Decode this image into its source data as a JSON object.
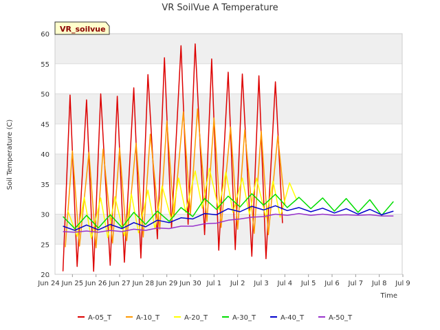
{
  "chart_data": {
    "type": "line",
    "title": "VR SoilVue A Temperature",
    "xlabel": "Time",
    "ylabel": "Soil Temperature (C)",
    "badge": "VR_soilvue",
    "ylim": [
      20,
      60
    ],
    "yticks": [
      20,
      25,
      30,
      35,
      40,
      45,
      50,
      55,
      60
    ],
    "xlim": [
      0,
      15
    ],
    "x_unit": "days from Jun 24",
    "xticks": [
      {
        "x": 0,
        "label": "Jun 24"
      },
      {
        "x": 1,
        "label": "Jun 25"
      },
      {
        "x": 2,
        "label": "Jun 26"
      },
      {
        "x": 3,
        "label": "Jun 27"
      },
      {
        "x": 4,
        "label": "Jun 28"
      },
      {
        "x": 5,
        "label": "Jun 29"
      },
      {
        "x": 6,
        "label": "Jun 30"
      },
      {
        "x": 7,
        "label": "Jul 1"
      },
      {
        "x": 8,
        "label": "Jul 2"
      },
      {
        "x": 9,
        "label": "Jul 3"
      },
      {
        "x": 10,
        "label": "Jul 4"
      },
      {
        "x": 11,
        "label": "Jul 5"
      },
      {
        "x": 12,
        "label": "Jul 6"
      },
      {
        "x": 13,
        "label": "Jul 7"
      },
      {
        "x": 14,
        "label": "Jul 8"
      },
      {
        "x": 15,
        "label": "Jul 9"
      }
    ],
    "grid": true,
    "background_bands": true,
    "legend_position": "bottom",
    "series": [
      {
        "name": "A-05_T",
        "color": "#dd0000",
        "x": [
          0.6,
          0.9,
          1.2,
          1.6,
          1.9,
          2.2,
          2.6,
          2.9,
          3.2,
          3.6,
          3.9,
          4.2,
          4.6,
          4.9,
          5.2,
          5.6,
          5.9,
          6.2,
          6.6,
          6.9,
          7.2,
          7.6,
          7.9,
          8.2,
          8.6,
          8.9,
          9.2,
          9.6,
          9.9,
          10.2,
          10.6,
          10.9,
          11.2,
          11.6,
          11.9,
          12.2,
          12.6,
          12.9,
          13.2,
          13.6,
          13.9,
          14.2,
          14.6,
          14.9
        ],
        "y": [
          20.5,
          49.8,
          21.3,
          49.0,
          20.5,
          50.0,
          21.5,
          49.6,
          22.0,
          51.0,
          22.7,
          53.2,
          25.9,
          56.0,
          27.7,
          58.0,
          28.3,
          58.3,
          26.6,
          55.8,
          24.0,
          53.6,
          24.1,
          53.3,
          23.0,
          53.0,
          22.6,
          52.0,
          28.5,
          null,
          null,
          null,
          null,
          null,
          null,
          null,
          null,
          null,
          null,
          null,
          null,
          null,
          null,
          null
        ]
      },
      {
        "name": "A-10_T",
        "color": "#ff9900",
        "x": [
          0.7,
          1.0,
          1.3,
          1.7,
          2.0,
          2.3,
          2.7,
          3.0,
          3.3,
          3.7,
          4.0,
          4.3,
          4.7,
          5.0,
          5.3,
          5.7,
          6.0,
          6.3,
          6.7,
          7.0,
          7.3,
          7.7,
          8.0,
          8.3,
          8.7,
          9.0,
          9.3,
          9.7,
          10.0,
          10.3,
          10.7,
          11.0,
          11.3,
          11.7,
          12.0,
          12.3,
          12.7,
          13.0,
          13.3,
          13.7,
          14.0,
          14.3,
          14.7,
          15.0
        ],
        "y": [
          24.5,
          40.5,
          24.7,
          40.3,
          24.4,
          40.8,
          25.2,
          41.0,
          25.6,
          41.8,
          26.2,
          43.3,
          27.5,
          45.5,
          29.6,
          47.0,
          30.0,
          47.5,
          28.8,
          46.0,
          27.8,
          44.5,
          27.5,
          44.0,
          26.8,
          43.8,
          26.6,
          43.0,
          31.6,
          null,
          null,
          null,
          null,
          null,
          null,
          null,
          null,
          null,
          null,
          null,
          null,
          null,
          null,
          null
        ]
      },
      {
        "name": "A-20_T",
        "color": "#ffff00",
        "x": [
          0.8,
          1.2,
          1.5,
          1.8,
          2.2,
          2.5,
          2.8,
          3.2,
          3.5,
          3.8,
          4.2,
          4.5,
          4.8,
          5.2,
          5.5,
          5.8,
          6.2,
          6.5,
          6.8,
          7.2,
          7.5,
          7.8,
          8.2,
          8.5,
          8.8,
          9.2,
          9.5,
          9.8,
          10.2,
          10.5,
          10.8,
          11.2,
          11.5,
          11.8,
          12.2,
          12.5,
          12.8,
          13.2,
          13.5,
          13.8,
          14.2,
          14.5,
          14.8,
          15.1
        ],
        "y": [
          30.6,
          26.3,
          32.8,
          26.0,
          32.7,
          26.1,
          32.9,
          26.4,
          33.3,
          26.9,
          34.0,
          27.5,
          34.7,
          29.0,
          36.0,
          30.3,
          37.2,
          31.0,
          37.6,
          30.8,
          37.0,
          30.3,
          36.0,
          30.0,
          36.0,
          29.4,
          35.5,
          29.5,
          35.2,
          32.4,
          null,
          null,
          null,
          null,
          null,
          null,
          null,
          null,
          null,
          null,
          null,
          null,
          null,
          null
        ]
      },
      {
        "name": "A-30_T",
        "color": "#00dd00",
        "x": [
          0.6,
          1.1,
          1.6,
          2.1,
          2.6,
          3.1,
          3.6,
          4.1,
          4.6,
          5.1,
          5.6,
          6.1,
          6.6,
          7.1,
          7.6,
          8.1,
          8.6,
          9.1,
          9.6,
          10.1,
          10.6,
          11.1,
          11.6,
          12.1,
          12.6,
          13.1,
          13.6,
          14.1,
          14.6,
          15.1
        ],
        "y": [
          29.6,
          27.6,
          29.8,
          27.7,
          29.9,
          27.8,
          30.3,
          28.3,
          30.5,
          28.8,
          31.1,
          29.6,
          32.6,
          30.8,
          33.0,
          31.2,
          33.4,
          31.5,
          33.3,
          31.1,
          32.8,
          30.9,
          32.7,
          30.5,
          32.6,
          30.3,
          32.4,
          29.8,
          32.1,
          null
        ]
      },
      {
        "name": "A-40_T",
        "color": "#0000cc",
        "x": [
          0.6,
          1.1,
          1.6,
          2.1,
          2.6,
          3.1,
          3.6,
          4.1,
          4.6,
          5.1,
          5.6,
          6.1,
          6.6,
          7.1,
          7.6,
          8.1,
          8.6,
          9.1,
          9.6,
          10.1,
          10.6,
          11.1,
          11.6,
          12.1,
          12.6,
          13.1,
          13.6,
          14.1,
          14.6,
          15.1
        ],
        "y": [
          28.0,
          27.3,
          28.2,
          27.4,
          28.3,
          27.6,
          28.6,
          27.9,
          29.0,
          28.6,
          29.4,
          29.2,
          30.1,
          29.9,
          30.9,
          30.4,
          31.3,
          30.7,
          31.4,
          30.6,
          31.1,
          30.4,
          31.0,
          30.2,
          30.9,
          30.0,
          30.8,
          29.9,
          30.5,
          null
        ]
      },
      {
        "name": "A-50_T",
        "color": "#9933cc",
        "x": [
          0.6,
          1.1,
          1.6,
          2.1,
          2.6,
          3.1,
          3.6,
          4.1,
          4.6,
          5.1,
          5.6,
          6.1,
          6.6,
          7.1,
          7.6,
          8.1,
          8.6,
          9.1,
          9.6,
          10.1,
          10.6,
          11.1,
          11.6,
          12.1,
          12.6,
          13.1,
          13.6,
          14.1,
          14.6,
          15.1
        ],
        "y": [
          27.1,
          27.0,
          27.2,
          27.0,
          27.3,
          27.1,
          27.5,
          27.3,
          27.7,
          27.6,
          28.0,
          28.0,
          28.4,
          28.5,
          29.0,
          29.2,
          29.5,
          29.6,
          30.0,
          29.8,
          30.1,
          29.8,
          30.0,
          29.8,
          29.9,
          29.8,
          29.9,
          29.7,
          29.7,
          null
        ]
      }
    ]
  }
}
